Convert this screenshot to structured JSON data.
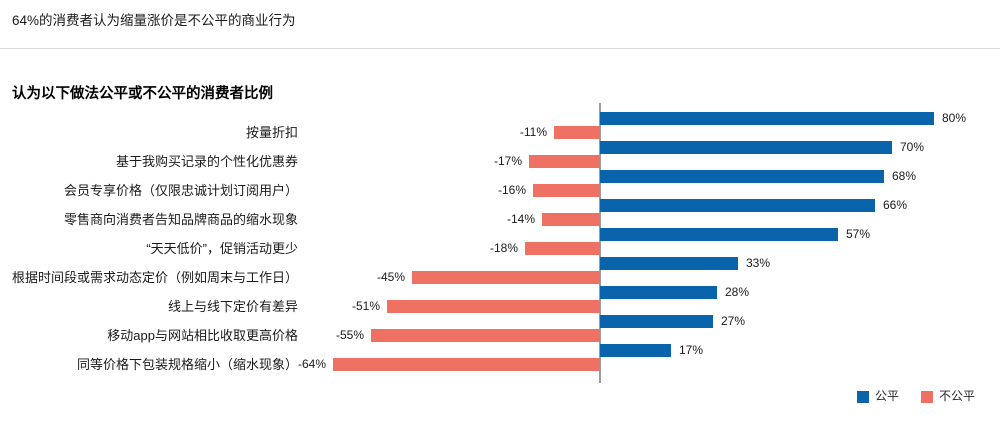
{
  "header": {
    "title": "64%的消费者认为缩量涨价是不公平的商业行为"
  },
  "chart": {
    "subtitle": "认为以下做法公平或不公平的消费者比例"
  },
  "chart_data": {
    "type": "bar",
    "orientation": "horizontal-diverging",
    "title": "认为以下做法公平或不公平的消费者比例",
    "categories": [
      "按量折扣",
      "基于我购买记录的个性化优惠券",
      "会员专享价格（仅限忠诚计划订阅用户）",
      "零售商向消费者告知品牌商品的缩水现象",
      "“天天低价”，促销活动更少",
      "根据时间段或需求动态定价（例如周末与工作日）",
      "线上与线下定价有差异",
      "移动app与网站相比收取更高价格",
      "同等价格下包装规格缩小（缩水现象）"
    ],
    "series": [
      {
        "name": "公平",
        "color": "#0a64ac",
        "values": [
          80,
          70,
          68,
          66,
          57,
          33,
          28,
          27,
          17
        ]
      },
      {
        "name": "不公平",
        "color": "#ee7164",
        "values": [
          -11,
          -17,
          -16,
          -14,
          -18,
          -45,
          -51,
          -55,
          -64
        ]
      }
    ],
    "value_suffix": "%",
    "xlim": [
      -100,
      100
    ],
    "grid": false,
    "legend_position": "bottom-right",
    "axis_line_color": "#9c9c9c"
  }
}
